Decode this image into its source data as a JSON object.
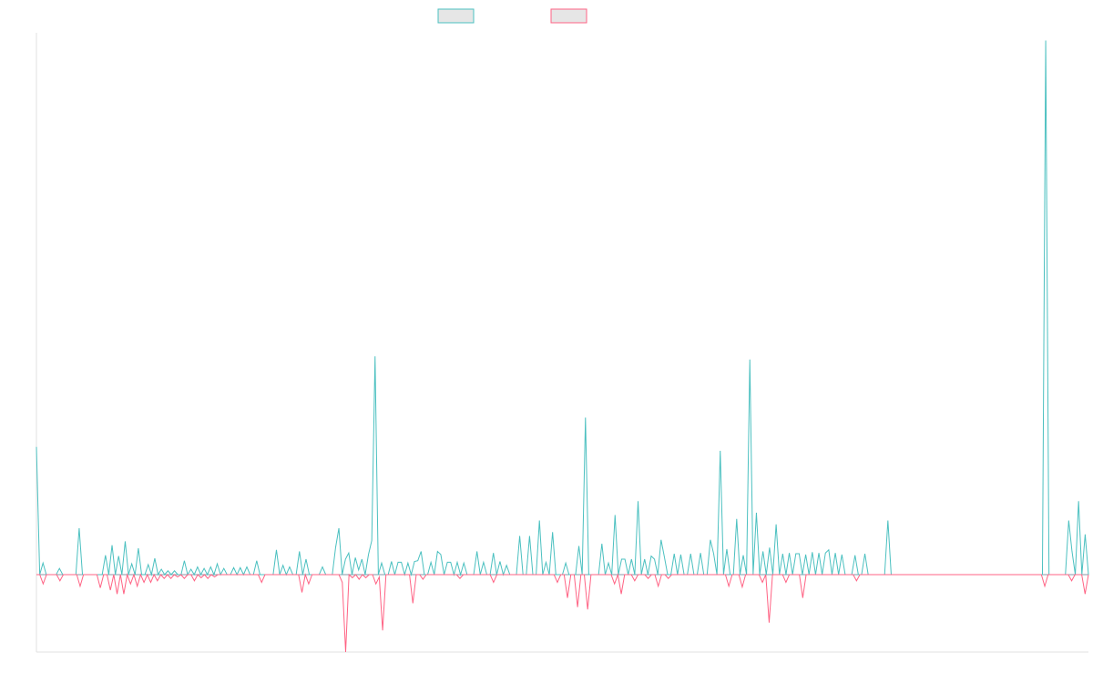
{
  "chart_data": {
    "type": "line",
    "title": "",
    "xlabel": "",
    "ylabel": "",
    "legend_position": "top-center",
    "grid": false,
    "ylim": [
      -1.0,
      7.0
    ],
    "series": [
      {
        "key": "teal",
        "color": "#4bc0c0",
        "fill": "#e6e6e6",
        "values": [
          1.65,
          0,
          0.15,
          0,
          0,
          0,
          0,
          0.08,
          0,
          0,
          0,
          0,
          0,
          0.6,
          0,
          0,
          0,
          0,
          0,
          0,
          0,
          0.25,
          0,
          0.38,
          0,
          0.24,
          0,
          0.43,
          0,
          0.14,
          0,
          0.34,
          0,
          0,
          0.13,
          0,
          0.21,
          0,
          0.07,
          0,
          0.05,
          0,
          0.05,
          0,
          0,
          0.18,
          0,
          0.07,
          0,
          0.1,
          0,
          0.08,
          0,
          0.1,
          0,
          0.14,
          0,
          0.08,
          0,
          0,
          0.09,
          0,
          0.09,
          0,
          0.1,
          0,
          0,
          0.18,
          0,
          0,
          0,
          0,
          0,
          0.32,
          0,
          0.12,
          0,
          0.1,
          0,
          0,
          0.3,
          0,
          0.2,
          0,
          0,
          0,
          0,
          0.1,
          0,
          0,
          0,
          0.35,
          0.6,
          0,
          0.2,
          0.28,
          0,
          0.22,
          0.06,
          0.2,
          0,
          0.26,
          0.44,
          2.82,
          0,
          0.15,
          0,
          0,
          0.17,
          0,
          0.16,
          0.16,
          0,
          0.15,
          0,
          0.17,
          0.18,
          0.3,
          0,
          0,
          0.16,
          0,
          0.3,
          0.26,
          0,
          0.16,
          0.16,
          0,
          0.16,
          0,
          0.15,
          0,
          0,
          0,
          0.3,
          0,
          0.16,
          0,
          0,
          0.28,
          0,
          0.17,
          0,
          0.12,
          0,
          0,
          0,
          0.5,
          0,
          0,
          0.5,
          0,
          0,
          0.7,
          0,
          0.16,
          0,
          0.55,
          0,
          0,
          0,
          0.15,
          0,
          0,
          0,
          0.37,
          0,
          2.03,
          0,
          0,
          0,
          0,
          0.4,
          0,
          0.15,
          0,
          0.77,
          0,
          0.2,
          0.2,
          0,
          0.2,
          0,
          0.95,
          0,
          0.2,
          0,
          0.24,
          0.2,
          0,
          0.45,
          0.23,
          0,
          0,
          0.27,
          0,
          0.26,
          0,
          0,
          0.27,
          0,
          0,
          0.28,
          0,
          0,
          0.45,
          0.27,
          0,
          1.6,
          0,
          0.33,
          0,
          0,
          0.72,
          0,
          0.25,
          0,
          2.78,
          0,
          0.8,
          0,
          0.3,
          0,
          0.35,
          0,
          0.65,
          0,
          0.27,
          0,
          0.28,
          0,
          0.27,
          0.27,
          0,
          0.26,
          0,
          0.29,
          0,
          0.28,
          0,
          0.28,
          0.32,
          0,
          0.28,
          0,
          0.26,
          0,
          0,
          0,
          0.25,
          0,
          0,
          0.27,
          0,
          0,
          0,
          0,
          0,
          0,
          0.7,
          0,
          0,
          0,
          0,
          0,
          0,
          0,
          0,
          0,
          0,
          0,
          0,
          0,
          0,
          0,
          0,
          0,
          0,
          0,
          0,
          0,
          0,
          0,
          0,
          0,
          0,
          0,
          0,
          0,
          0,
          0,
          0,
          0,
          0,
          0,
          0,
          0,
          0,
          0,
          0,
          0,
          0,
          0,
          0,
          0,
          0,
          0,
          6.9,
          0,
          0,
          0,
          0,
          0,
          0,
          0.7,
          0.3,
          0,
          0.95,
          0,
          0.52,
          0
        ]
      },
      {
        "key": "pink",
        "color": "#ff6384",
        "fill": "#e6e6e6",
        "values": [
          0,
          0,
          -0.12,
          0,
          0,
          0,
          0,
          -0.08,
          0,
          0,
          0,
          0,
          0,
          -0.15,
          0,
          0,
          0,
          0,
          0,
          -0.17,
          0,
          0,
          -0.2,
          0,
          -0.25,
          0,
          -0.25,
          0,
          -0.12,
          0,
          -0.15,
          0,
          -0.1,
          0,
          -0.1,
          0,
          -0.08,
          0,
          -0.05,
          0,
          -0.05,
          0,
          -0.03,
          0,
          -0.05,
          0,
          0,
          -0.08,
          0,
          -0.04,
          0,
          -0.05,
          0,
          -0.03,
          0,
          0,
          0,
          0,
          0,
          0,
          0,
          0,
          0,
          0,
          0,
          0,
          0,
          -0.1,
          0,
          0,
          0,
          0,
          0,
          0,
          0,
          0,
          0,
          0,
          0,
          -0.23,
          0,
          -0.12,
          0,
          0,
          0,
          0,
          0,
          0,
          0,
          0,
          0,
          -0.1,
          -1.0,
          0,
          -0.04,
          0,
          -0.06,
          0,
          -0.04,
          0,
          0,
          -0.12,
          -0.03,
          -0.72,
          0,
          0,
          0,
          0,
          0,
          0,
          0,
          0,
          -0.37,
          0,
          0,
          -0.06,
          0,
          0,
          0,
          0,
          0,
          0,
          0,
          0,
          0,
          0,
          -0.05,
          0,
          0,
          0,
          0,
          0,
          0,
          0,
          0,
          0,
          -0.1,
          0,
          0,
          0,
          0,
          0,
          0,
          0,
          0,
          0,
          0,
          0,
          0,
          0,
          0,
          0,
          0,
          0,
          0,
          -0.1,
          0,
          0,
          -0.3,
          0,
          0,
          -0.42,
          0,
          0,
          -0.45,
          0,
          0,
          0,
          0,
          0,
          0,
          0,
          -0.12,
          0,
          -0.25,
          0,
          0,
          0,
          -0.08,
          0,
          0,
          0,
          -0.05,
          0,
          0,
          -0.15,
          0,
          0,
          -0.05,
          0,
          0,
          0,
          0,
          0,
          0,
          0,
          0,
          0,
          0,
          0,
          0,
          0,
          0,
          0,
          0,
          0,
          -0.15,
          0,
          0,
          0,
          -0.16,
          0,
          0,
          0,
          0,
          0,
          -0.1,
          0,
          -0.62,
          0,
          0,
          0,
          0,
          -0.1,
          0,
          0,
          0,
          0,
          -0.3,
          0,
          0,
          0,
          0,
          0,
          0,
          0,
          0,
          0,
          0,
          0,
          0,
          0,
          0,
          0,
          -0.08,
          0,
          0,
          0,
          0,
          0,
          0,
          0,
          0,
          0,
          0,
          0,
          0,
          0,
          0,
          0,
          0,
          0,
          0,
          0,
          0,
          0,
          0,
          0,
          0,
          0,
          0,
          0,
          0,
          0,
          0,
          0,
          0,
          0,
          0,
          0,
          0,
          0,
          0,
          0,
          0,
          0,
          0,
          0,
          0,
          0,
          0,
          0,
          0,
          0,
          0,
          0,
          0,
          0,
          0,
          0,
          -0.15,
          0,
          0,
          0,
          0,
          0,
          0,
          0,
          -0.08,
          0,
          0,
          0,
          -0.25,
          0
        ]
      }
    ]
  }
}
